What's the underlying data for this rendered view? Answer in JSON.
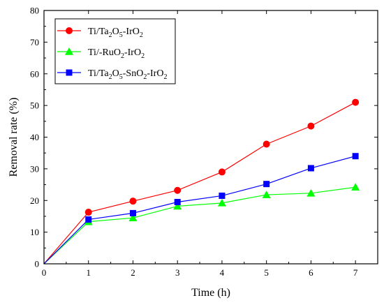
{
  "chart_data": {
    "type": "line",
    "xlabel": "Time (h)",
    "ylabel": "Removal rate (%)",
    "xlim": [
      0,
      7.5
    ],
    "ylim": [
      0,
      80
    ],
    "xticks": [
      0,
      1,
      2,
      3,
      4,
      5,
      6,
      7
    ],
    "yticks": [
      0,
      10,
      20,
      30,
      40,
      50,
      60,
      70,
      80
    ],
    "legend_position": "top-left",
    "grid": false,
    "series": [
      {
        "name": "Ti/Ta2O5-IrO2",
        "name_parts": [
          {
            "t": "Ti/Ta",
            "sub": false
          },
          {
            "t": "2",
            "sub": true
          },
          {
            "t": "O",
            "sub": false
          },
          {
            "t": "5",
            "sub": true
          },
          {
            "t": "-IrO",
            "sub": false
          },
          {
            "t": "2",
            "sub": true
          }
        ],
        "color": "#ff0000",
        "marker": "circle",
        "x": [
          0,
          1,
          2,
          3,
          4,
          5,
          6,
          7
        ],
        "y": [
          0,
          16.3,
          19.8,
          23.2,
          29.0,
          37.8,
          43.5,
          51.0
        ]
      },
      {
        "name": "Ti/-RuO2-IrO2",
        "name_parts": [
          {
            "t": "Ti/-RuO",
            "sub": false
          },
          {
            "t": "2",
            "sub": true
          },
          {
            "t": "-IrO",
            "sub": false
          },
          {
            "t": "2",
            "sub": true
          }
        ],
        "color": "#00ff00",
        "marker": "triangle",
        "x": [
          0,
          1,
          2,
          3,
          4,
          5,
          6,
          7
        ],
        "y": [
          0,
          13.3,
          14.5,
          18.2,
          19.2,
          21.8,
          22.3,
          24.2
        ]
      },
      {
        "name": "Ti/Ta2O5-SnO2-IrO2",
        "name_parts": [
          {
            "t": "Ti/Ta",
            "sub": false
          },
          {
            "t": "2",
            "sub": true
          },
          {
            "t": "O",
            "sub": false
          },
          {
            "t": "5",
            "sub": true
          },
          {
            "t": "-SnO",
            "sub": false
          },
          {
            "t": "2",
            "sub": true
          },
          {
            "t": "-IrO",
            "sub": false
          },
          {
            "t": "2",
            "sub": true
          }
        ],
        "color": "#0000ff",
        "marker": "square",
        "x": [
          0,
          1,
          2,
          3,
          4,
          5,
          6,
          7
        ],
        "y": [
          0,
          14.0,
          16.0,
          19.5,
          21.5,
          25.2,
          30.2,
          34.0
        ]
      }
    ]
  }
}
